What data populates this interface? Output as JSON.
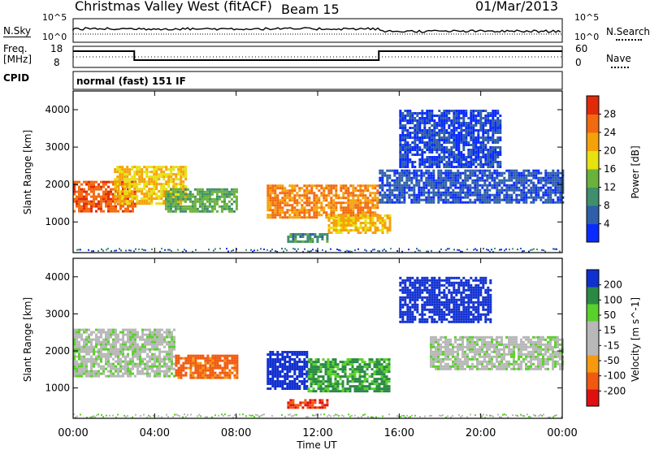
{
  "header": {
    "station": "Christmas Valley West (fitACF)",
    "beam": "Beam 15",
    "date": "01/Mar/2013"
  },
  "top_panels": {
    "nsky_label": "N.Sky",
    "nsky_scale_hi": "10^5",
    "nsky_scale_lo": "10^0",
    "nsearch_label": "N.Search",
    "nsearch_scale_hi": "10^5",
    "nsearch_scale_lo": "10^0",
    "freq_label_1": "Freq.",
    "freq_label_2": "[MHz]",
    "freq_ticks": [
      "18",
      "8"
    ],
    "nave_label": "Nave",
    "nave_ticks": [
      "60",
      "0"
    ],
    "cpid_label": "CPID",
    "cpid_value": "normal (fast) 151 IF"
  },
  "axes": {
    "ylabel": "Slant Range [km]",
    "xlabel": "Time UT",
    "x_ticks": [
      "00:00",
      "04:00",
      "08:00",
      "12:00",
      "16:00",
      "20:00",
      "00:00"
    ],
    "y_ticks": [
      "1000",
      "2000",
      "3000",
      "4000"
    ]
  },
  "colors": {
    "power_scale": [
      "#0a2bff",
      "#2e5fa8",
      "#3f8f6c",
      "#6ab23c",
      "#e6e10f",
      "#f5a20a",
      "#f26a10",
      "#e02a0a"
    ],
    "velocity_scale": [
      "#e01010",
      "#f05a10",
      "#f59a10",
      "#b8b8b8",
      "#b8b8b8",
      "#5ad02a",
      "#2a8a45",
      "#1030d0"
    ]
  },
  "chart_data": [
    {
      "type": "heatmap",
      "panel": "power",
      "title": "",
      "colorbar_label": "Power [dB]",
      "colorbar_ticks": [
        "4",
        "8",
        "12",
        "16",
        "20",
        "24",
        "28"
      ],
      "xlabel": "",
      "ylabel": "Slant Range [km]",
      "xlim": [
        "00:00",
        "24:00"
      ],
      "ylim": [
        180,
        4500
      ],
      "regions": [
        {
          "t0": 0.0,
          "t1": 3.0,
          "r0": 1300,
          "r1": 2100,
          "level": 27
        },
        {
          "t0": 2.0,
          "t1": 5.5,
          "r0": 1500,
          "r1": 2500,
          "level": 20
        },
        {
          "t0": 4.5,
          "t1": 8.0,
          "r0": 1250,
          "r1": 1900,
          "level": 13
        },
        {
          "t0": 9.5,
          "t1": 15.0,
          "r0": 1100,
          "r1": 2000,
          "level": 24
        },
        {
          "t0": 12.5,
          "t1": 15.5,
          "r0": 700,
          "r1": 1200,
          "level": 21
        },
        {
          "t0": 10.5,
          "t1": 12.5,
          "r0": 500,
          "r1": 700,
          "level": 10
        },
        {
          "t0": 15.0,
          "t1": 24.0,
          "r0": 1500,
          "r1": 2400,
          "level": 5
        },
        {
          "t0": 16.0,
          "t1": 21.0,
          "r0": 2500,
          "r1": 4000,
          "level": 4
        }
      ]
    },
    {
      "type": "heatmap",
      "panel": "velocity",
      "title": "",
      "colorbar_label": "Velocity [m s^-1]",
      "colorbar_ticks": [
        "-200",
        "-100",
        "-50",
        "-15",
        "15",
        "50",
        "100",
        "200"
      ],
      "xlabel": "Time UT",
      "ylabel": "Slant Range [km]",
      "xlim": [
        "00:00",
        "24:00"
      ],
      "ylim": [
        180,
        4500
      ],
      "regions": [
        {
          "t0": 0.0,
          "t1": 5.0,
          "r0": 1300,
          "r1": 2600,
          "level": 0
        },
        {
          "t0": 5.0,
          "t1": 8.0,
          "r0": 1250,
          "r1": 1900,
          "level": -120
        },
        {
          "t0": 9.5,
          "t1": 11.5,
          "r0": 1000,
          "r1": 2000,
          "level": 150
        },
        {
          "t0": 11.5,
          "t1": 15.5,
          "r0": 900,
          "r1": 1800,
          "level": 60
        },
        {
          "t0": 10.5,
          "t1": 12.5,
          "r0": 500,
          "r1": 700,
          "level": -200
        },
        {
          "t0": 17.5,
          "t1": 24.0,
          "r0": 1500,
          "r1": 2400,
          "level": 0
        },
        {
          "t0": 16.0,
          "t1": 20.5,
          "r0": 2800,
          "r1": 4000,
          "level": 150
        }
      ]
    }
  ]
}
